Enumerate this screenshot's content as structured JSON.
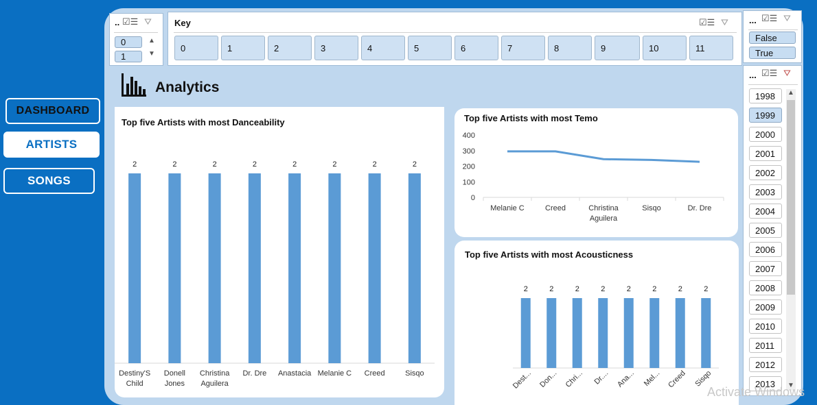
{
  "nav": {
    "dashboard": "DASHBOARD",
    "artists": "ARTISTS",
    "songs": "SONGS"
  },
  "slicers": {
    "mode": {
      "title": "..",
      "items": [
        "0",
        "1"
      ]
    },
    "key": {
      "title": "Key",
      "items": [
        "0",
        "1",
        "2",
        "3",
        "4",
        "5",
        "6",
        "7",
        "8",
        "9",
        "10",
        "11"
      ]
    },
    "explicit": {
      "title": "...",
      "items": [
        "False",
        "True"
      ]
    },
    "year": {
      "title": "...",
      "items": [
        "1998",
        "1999",
        "2000",
        "2001",
        "2002",
        "2003",
        "2004",
        "2005",
        "2006",
        "2007",
        "2008",
        "2009",
        "2010",
        "2011",
        "2012",
        "2013"
      ],
      "selected": "1999"
    }
  },
  "header": {
    "title": "Analytics",
    "icon": "bar-chart-icon"
  },
  "watermark": "Activate Windows",
  "colors": {
    "bar": "#5b9bd5",
    "nav_bg": "#0a6fc2",
    "panel_bg": "#bfd7ee"
  },
  "chart_data": [
    {
      "type": "bar",
      "title": "Top five Artists with most Danceability",
      "categories": [
        "Destiny'S Child",
        "Donell Jones",
        "Christina Aguilera",
        "Dr. Dre",
        "Anastacia",
        "Melanie C",
        "Creed",
        "Sisqo"
      ],
      "category_lines": [
        [
          "Destiny'S",
          "Child"
        ],
        [
          "Donell",
          "Jones"
        ],
        [
          "Christina",
          "Aguilera"
        ],
        [
          "Dr. Dre"
        ],
        [
          "Anastacia"
        ],
        [
          "Melanie C"
        ],
        [
          "Creed"
        ],
        [
          "Sisqo"
        ]
      ],
      "values": [
        2,
        2,
        2,
        2,
        2,
        2,
        2,
        2
      ],
      "data_labels": true
    },
    {
      "type": "line",
      "title": "Top five Artists with most Temo",
      "categories": [
        "Melanie C",
        "Creed",
        "Christina Aguilera",
        "Sisqo",
        "Dr. Dre"
      ],
      "category_lines": [
        [
          "Melanie C"
        ],
        [
          "Creed"
        ],
        [
          "Christina",
          "Aguilera"
        ],
        [
          "Sisqo"
        ],
        [
          "Dr. Dre"
        ]
      ],
      "values": [
        295,
        295,
        245,
        240,
        228
      ],
      "ylim": [
        0,
        400
      ],
      "yticks": [
        "0",
        "100",
        "200",
        "300",
        "400"
      ]
    },
    {
      "type": "bar",
      "title": "Top five Artists with most Acousticness",
      "categories": [
        "Dest...",
        "Don...",
        "Chri...",
        "Dr....",
        "Ana...",
        "Mel...",
        "Creed",
        "Sisqo"
      ],
      "values": [
        2,
        2,
        2,
        2,
        2,
        2,
        2,
        2
      ],
      "data_labels": true
    }
  ]
}
